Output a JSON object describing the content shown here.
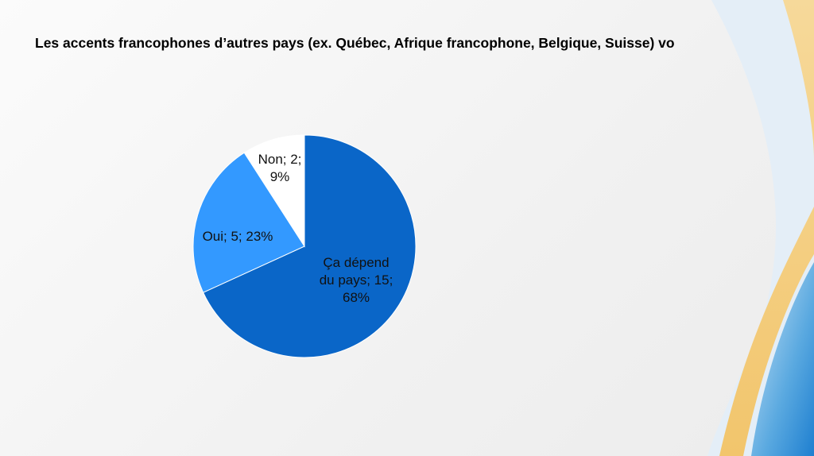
{
  "chart_data": {
    "type": "pie",
    "title": "Les accents francophones d’autres pays (ex. Québec, Afrique francophone, Belgique, Suisse) vo",
    "categories": [
      "Ça dépend du pays",
      "Oui",
      "Non"
    ],
    "values": [
      15,
      5,
      2
    ],
    "value_labels": [
      "Ça dépend du pays; 15; 68%",
      "Oui; 5; 23%",
      "Non; 2; 9%"
    ],
    "colors": [
      "#0a66c8",
      "#3399ff",
      "#ffffff"
    ]
  }
}
